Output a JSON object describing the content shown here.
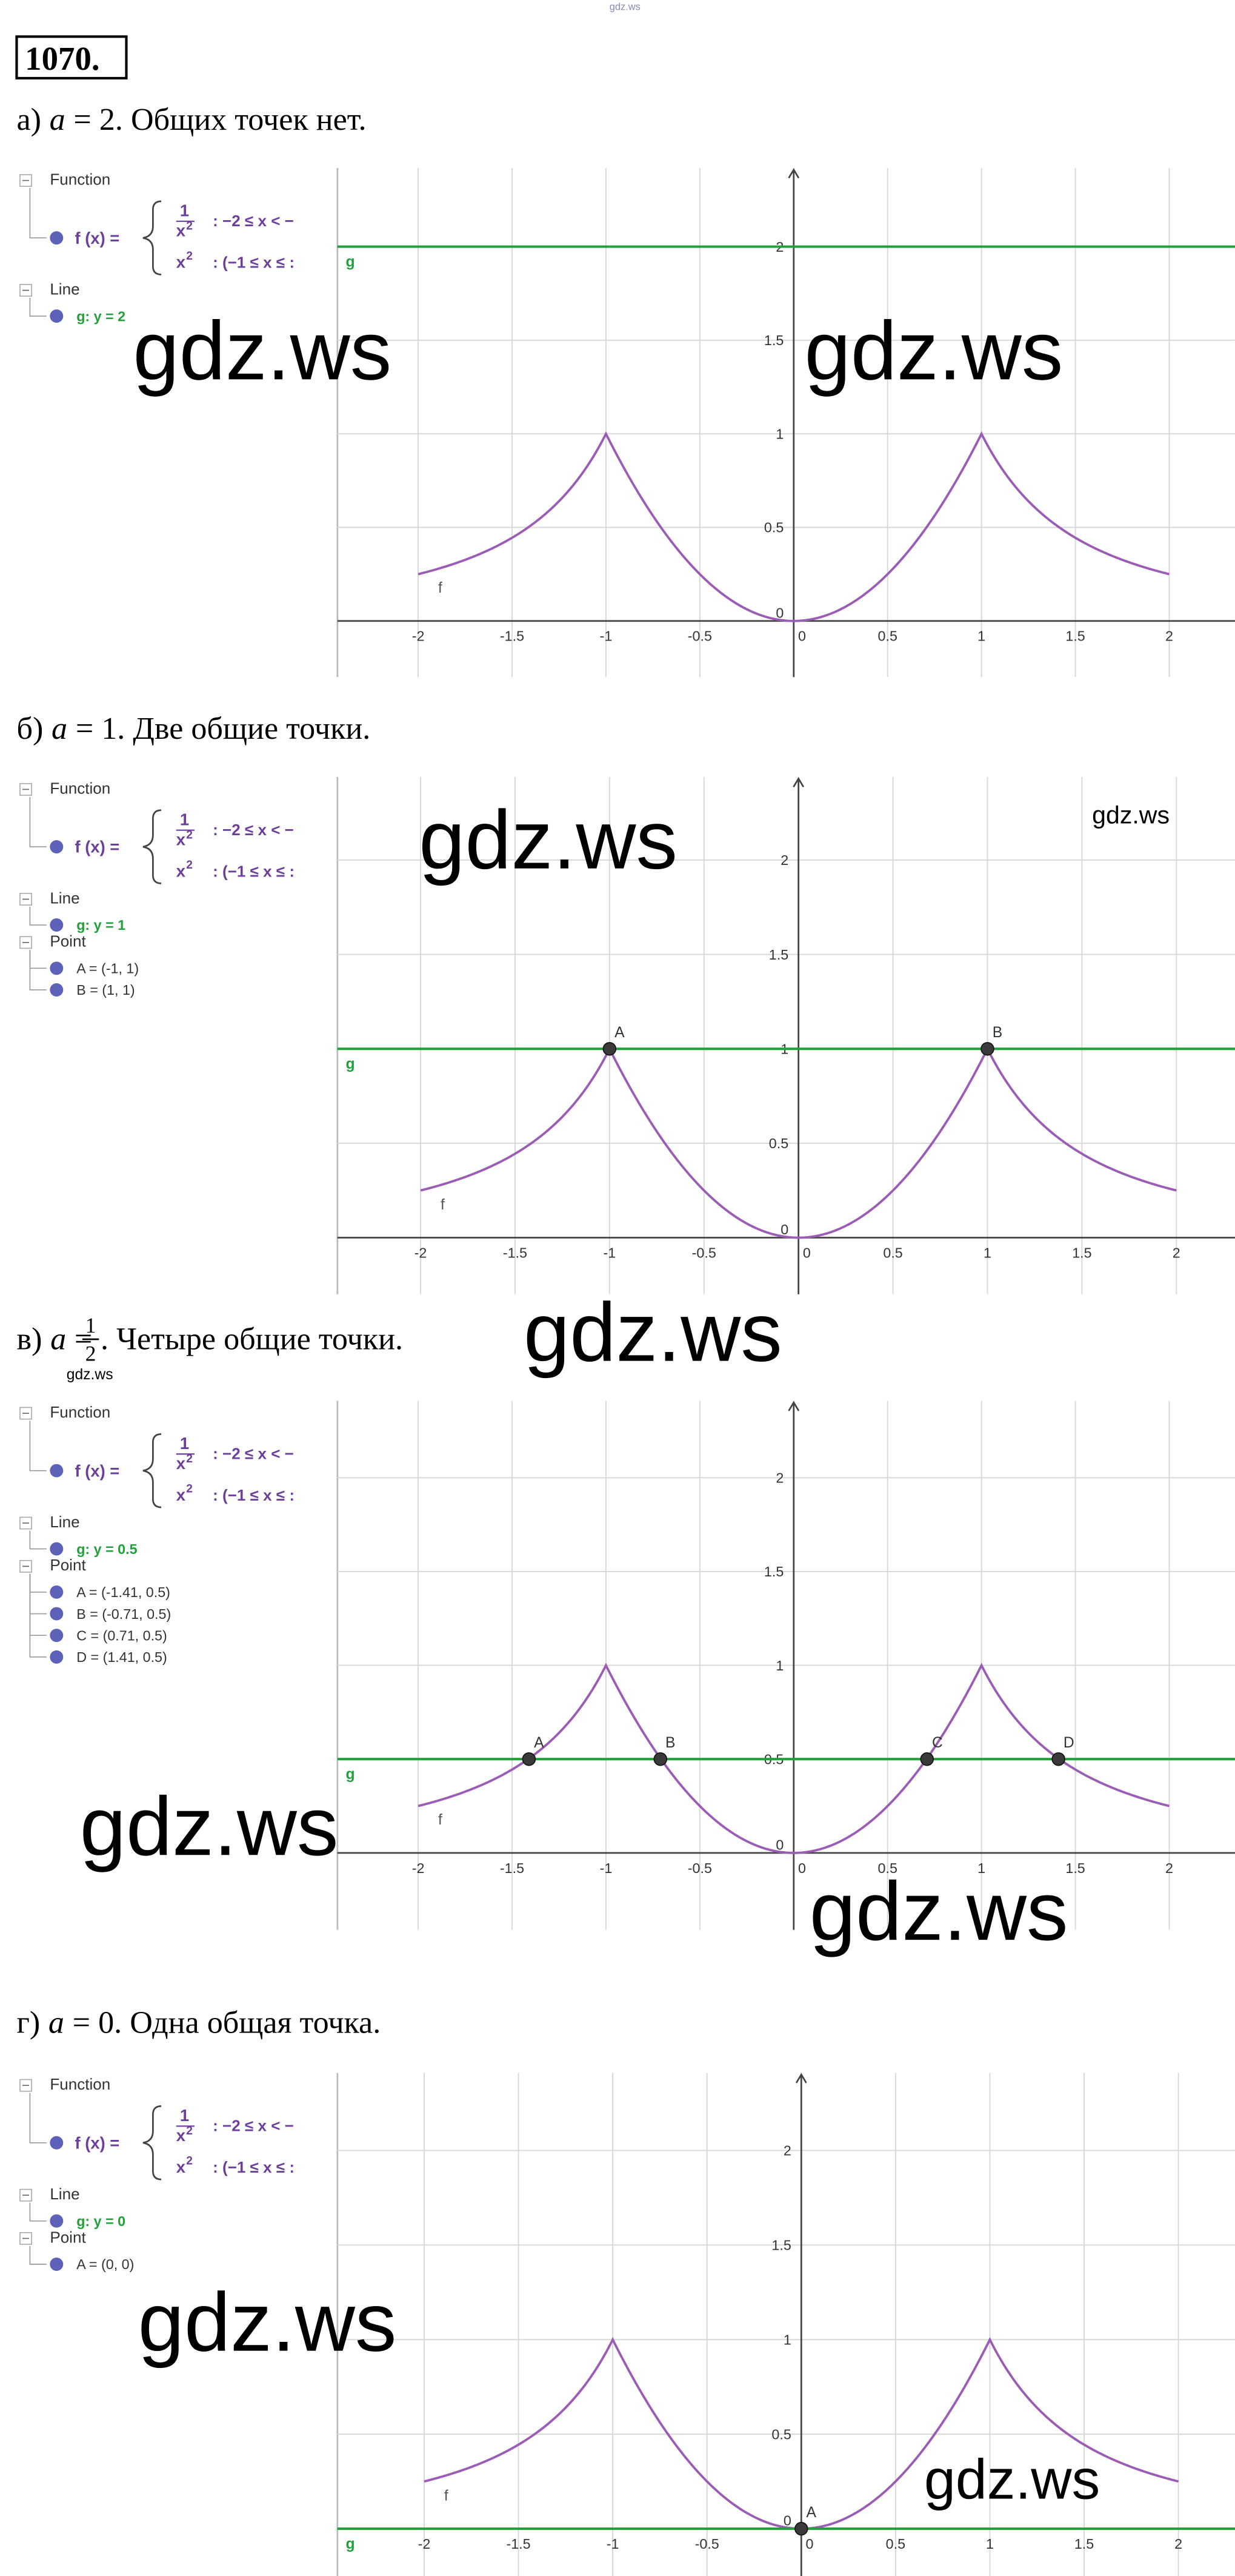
{
  "watermarks": [
    "gdz.ws",
    "gdz.ws",
    "gdz.ws",
    "gdz.ws",
    "gdz.ws",
    "gdz.ws",
    "gdz.ws",
    "gdz.ws",
    "gdz.ws",
    "gdz.ws",
    "gdz.ws"
  ],
  "header": {
    "number": "1070."
  },
  "sections": [
    {
      "letter": "а)",
      "var": "a",
      "rest": "= 2",
      "text": ". Общих точек нет.",
      "panel": {
        "function_header": "Function",
        "function_name": "f (x) =",
        "num": "1",
        "den": "x",
        "den_exp": "2",
        "cond1": ": −2 ≤ x < −",
        "base": "x",
        "base_exp": "2",
        "cond2": ": (−1 ≤ x ≤ :",
        "line_header": "Line"
      },
      "graph": {
        "xlim": [
          -2.43,
          2.35
        ],
        "ylim": [
          -0.3,
          2.42
        ],
        "xticks": [
          -2,
          -1.5,
          -1,
          -0.5,
          0,
          0.5,
          1,
          1.5,
          2
        ],
        "yticks": [
          0,
          0.5,
          1,
          1.5,
          2
        ],
        "grid": true,
        "curve_name": "f",
        "curve_color": "#9a5cb4",
        "line": {
          "name": "g",
          "label": "g: y = 2",
          "y": 2,
          "color": "#22a03c"
        }
      }
    },
    {
      "letter": "б)",
      "var": "a",
      "rest": "= 1",
      "text": ". Две общие точки.",
      "panel": {
        "function_header": "Function",
        "function_name": "f (x) =",
        "num": "1",
        "den": "x",
        "den_exp": "2",
        "cond1": ": −2 ≤ x < −",
        "base": "x",
        "base_exp": "2",
        "cond2": ": (−1 ≤ x ≤ :",
        "line_header": "Line",
        "point_header": "Point"
      },
      "graph": {
        "xlim": [
          -2.44,
          2.31
        ],
        "ylim": [
          -0.3,
          2.44
        ],
        "xticks": [
          -2,
          -1.5,
          -1,
          -0.5,
          0,
          0.5,
          1,
          1.5,
          2
        ],
        "yticks": [
          0,
          0.5,
          1,
          1.5,
          2
        ],
        "grid": true,
        "curve_name": "f",
        "curve_color": "#9a5cb4",
        "line": {
          "name": "g",
          "label": "g: y = 1",
          "y": 1,
          "color": "#22a03c"
        },
        "point_color": "#3a3a3a",
        "points": [
          {
            "name": "A",
            "label": "A = (-1, 1)",
            "x": -1,
            "y": 1
          },
          {
            "name": "B",
            "label": "B = (1, 1)",
            "x": 1,
            "y": 1
          }
        ]
      }
    },
    {
      "letter": "в)",
      "var": "a",
      "rest": "=",
      "frac_num": "1",
      "frac_den": "2",
      "text": ". Четыре общие точки.",
      "panel": {
        "function_header": "Function",
        "function_name": "f (x) =",
        "num": "1",
        "den": "x",
        "den_exp": "2",
        "cond1": ": −2 ≤ x < −",
        "base": "x",
        "base_exp": "2",
        "cond2": ": (−1 ≤ x ≤ :",
        "line_header": "Line",
        "point_header": "Point"
      },
      "graph": {
        "xlim": [
          -2.43,
          2.35
        ],
        "ylim": [
          -0.41,
          2.41
        ],
        "xticks": [
          -2,
          -1.5,
          -1,
          -0.5,
          0,
          0.5,
          1,
          1.5,
          2
        ],
        "yticks": [
          0,
          0.5,
          1,
          1.5,
          2
        ],
        "grid": true,
        "curve_name": "f",
        "curve_color": "#9a5cb4",
        "line": {
          "name": "g",
          "label": "g: y = 0.5",
          "y": 0.5,
          "color": "#22a03c"
        },
        "point_color": "#3a3a3a",
        "points": [
          {
            "name": "A",
            "label": "A = (-1.41, 0.5)",
            "x": -1.41,
            "y": 0.5
          },
          {
            "name": "B",
            "label": "B = (-0.71, 0.5)",
            "x": -0.71,
            "y": 0.5
          },
          {
            "name": "C",
            "label": "C = (0.71, 0.5)",
            "x": 0.71,
            "y": 0.5
          },
          {
            "name": "D",
            "label": "D = (1.41, 0.5)",
            "x": 1.41,
            "y": 0.5
          }
        ]
      }
    },
    {
      "letter": "г)",
      "var": "a",
      "rest": "= 0",
      "text": ". Одна общая точка.",
      "panel": {
        "function_header": "Function",
        "function_name": "f (x) =",
        "num": "1",
        "den": "x",
        "den_exp": "2",
        "cond1": ": −2 ≤ x < −",
        "base": "x",
        "base_exp": "2",
        "cond2": ": (−1 ≤ x ≤ :",
        "line_header": "Line",
        "point_header": "Point"
      },
      "graph": {
        "xlim": [
          -2.46,
          2.3
        ],
        "ylim": [
          -0.25,
          2.41
        ],
        "xticks": [
          -2,
          -1.5,
          -1,
          -0.5,
          0,
          0.5,
          1,
          1.5,
          2
        ],
        "yticks": [
          0,
          0.5,
          1,
          1.5,
          2
        ],
        "grid": true,
        "curve_name": "f",
        "curve_color": "#9a5cb4",
        "line": {
          "name": "g",
          "label": "g: y = 0",
          "y": 0,
          "color": "#22a03c"
        },
        "point_color": "#3a3a3a",
        "points": [
          {
            "name": "A",
            "label": "A = (0, 0)",
            "x": 0,
            "y": 0
          }
        ]
      }
    }
  ]
}
